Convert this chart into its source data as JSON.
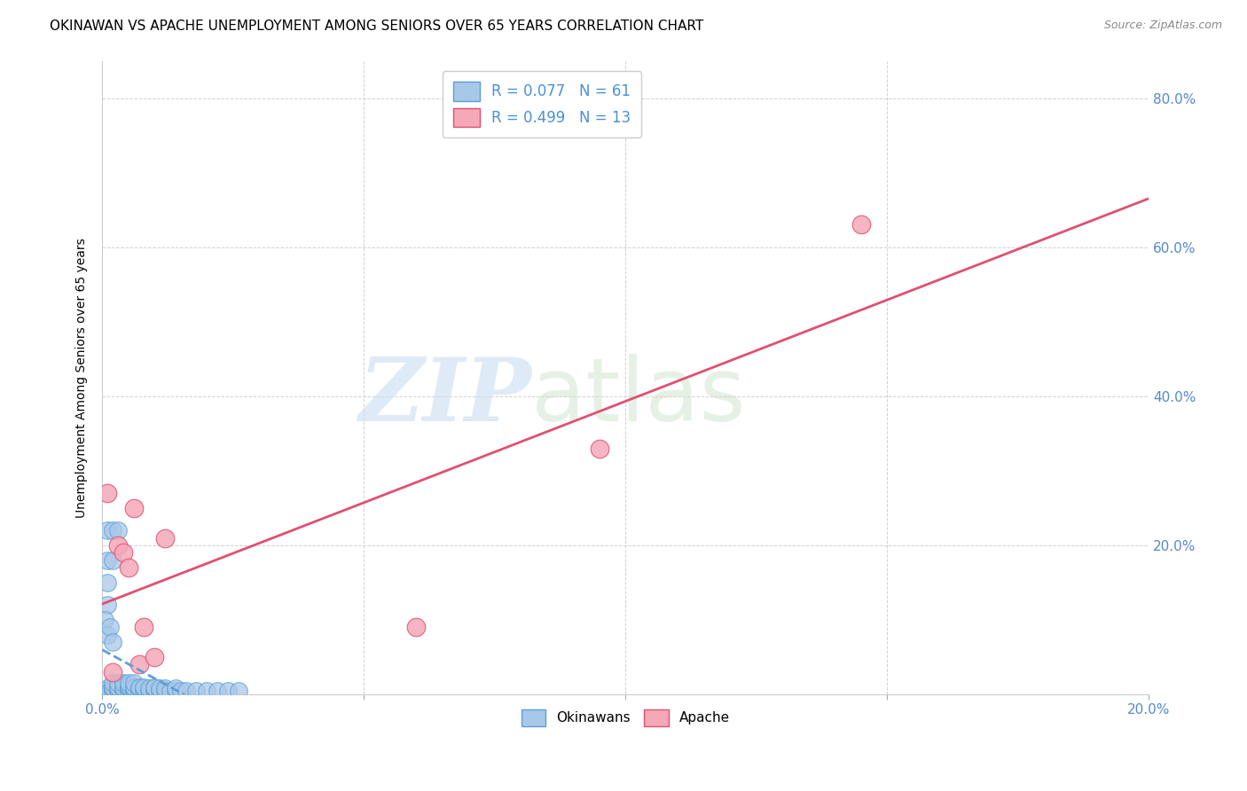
{
  "title": "OKINAWAN VS APACHE UNEMPLOYMENT AMONG SENIORS OVER 65 YEARS CORRELATION CHART",
  "source": "Source: ZipAtlas.com",
  "ylabel": "Unemployment Among Seniors over 65 years",
  "xlim": [
    0.0,
    0.2
  ],
  "ylim": [
    0.0,
    0.85
  ],
  "background_color": "#ffffff",
  "grid_color": "#cccccc",
  "okinawan_color": "#a8c8e8",
  "apache_color": "#f4a8b8",
  "okinawan_line_color": "#5a9fd4",
  "apache_line_color": "#e05070",
  "okinawan_scatter_x": [
    0.0005,
    0.001,
    0.001,
    0.0015,
    0.002,
    0.002,
    0.002,
    0.002,
    0.003,
    0.003,
    0.003,
    0.003,
    0.004,
    0.004,
    0.004,
    0.004,
    0.005,
    0.005,
    0.005,
    0.005,
    0.005,
    0.006,
    0.006,
    0.006,
    0.006,
    0.007,
    0.007,
    0.007,
    0.008,
    0.008,
    0.008,
    0.009,
    0.009,
    0.01,
    0.01,
    0.01,
    0.011,
    0.011,
    0.012,
    0.012,
    0.013,
    0.014,
    0.014,
    0.015,
    0.016,
    0.018,
    0.02,
    0.022,
    0.024,
    0.026,
    0.001,
    0.002,
    0.003,
    0.001,
    0.002,
    0.001,
    0.001,
    0.0005,
    0.001,
    0.0015,
    0.002
  ],
  "okinawan_scatter_y": [
    0.005,
    0.005,
    0.008,
    0.005,
    0.005,
    0.008,
    0.01,
    0.015,
    0.005,
    0.008,
    0.01,
    0.015,
    0.005,
    0.008,
    0.01,
    0.015,
    0.005,
    0.008,
    0.01,
    0.012,
    0.015,
    0.005,
    0.008,
    0.01,
    0.015,
    0.005,
    0.008,
    0.01,
    0.005,
    0.008,
    0.01,
    0.005,
    0.008,
    0.005,
    0.008,
    0.01,
    0.005,
    0.008,
    0.005,
    0.008,
    0.005,
    0.005,
    0.008,
    0.005,
    0.005,
    0.005,
    0.005,
    0.005,
    0.005,
    0.005,
    0.22,
    0.22,
    0.22,
    0.18,
    0.18,
    0.15,
    0.12,
    0.1,
    0.08,
    0.09,
    0.07
  ],
  "apache_scatter_x": [
    0.001,
    0.002,
    0.003,
    0.004,
    0.005,
    0.006,
    0.007,
    0.008,
    0.01,
    0.012,
    0.095,
    0.145,
    0.06
  ],
  "apache_scatter_y": [
    0.27,
    0.03,
    0.2,
    0.19,
    0.17,
    0.25,
    0.04,
    0.09,
    0.05,
    0.21,
    0.33,
    0.63,
    0.09
  ],
  "title_fontsize": 11,
  "axis_label_fontsize": 10,
  "tick_fontsize": 11,
  "legend_fontsize": 12,
  "legend_text_color": "#4a90d9",
  "tick_color": "#5588cc",
  "right_ytick_vals": [
    0.2,
    0.4,
    0.6,
    0.8
  ],
  "right_ytick_labels": [
    "20.0%",
    "40.0%",
    "60.0%",
    "80.0%"
  ]
}
